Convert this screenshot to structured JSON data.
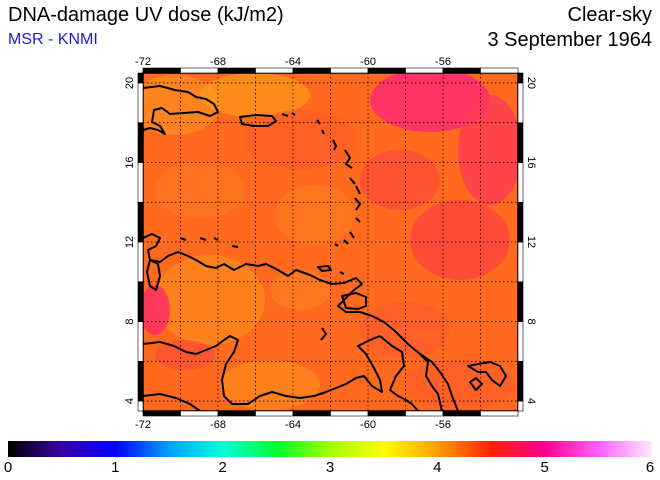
{
  "header": {
    "title": "DNA-damage UV dose (kJ/m2)",
    "subtitle": "MSR - KNMI",
    "condition": "Clear-sky",
    "date": "3 September 1964"
  },
  "map": {
    "lon_ticks": [
      "-72",
      "-68",
      "-64",
      "-60",
      "-56"
    ],
    "lat_ticks": [
      "4",
      "8",
      "12",
      "16",
      "20"
    ],
    "lon_range": [
      -72,
      -52
    ],
    "lat_range": [
      3.5,
      20.5
    ],
    "grid": true,
    "colors": {
      "background": "#ff6a1e",
      "frame": "#000000"
    }
  },
  "colorbar": {
    "labels": [
      "0",
      "1",
      "2",
      "3",
      "4",
      "5",
      "6"
    ],
    "range": [
      0,
      6
    ],
    "stops": [
      "#000000",
      "#3b00a8",
      "#0000ff",
      "#00a0ff",
      "#00ffd8",
      "#00ff30",
      "#a0ff00",
      "#ffff00",
      "#ffa000",
      "#ff2000",
      "#ff0090",
      "#ff60ff",
      "#ffe8ff"
    ]
  }
}
